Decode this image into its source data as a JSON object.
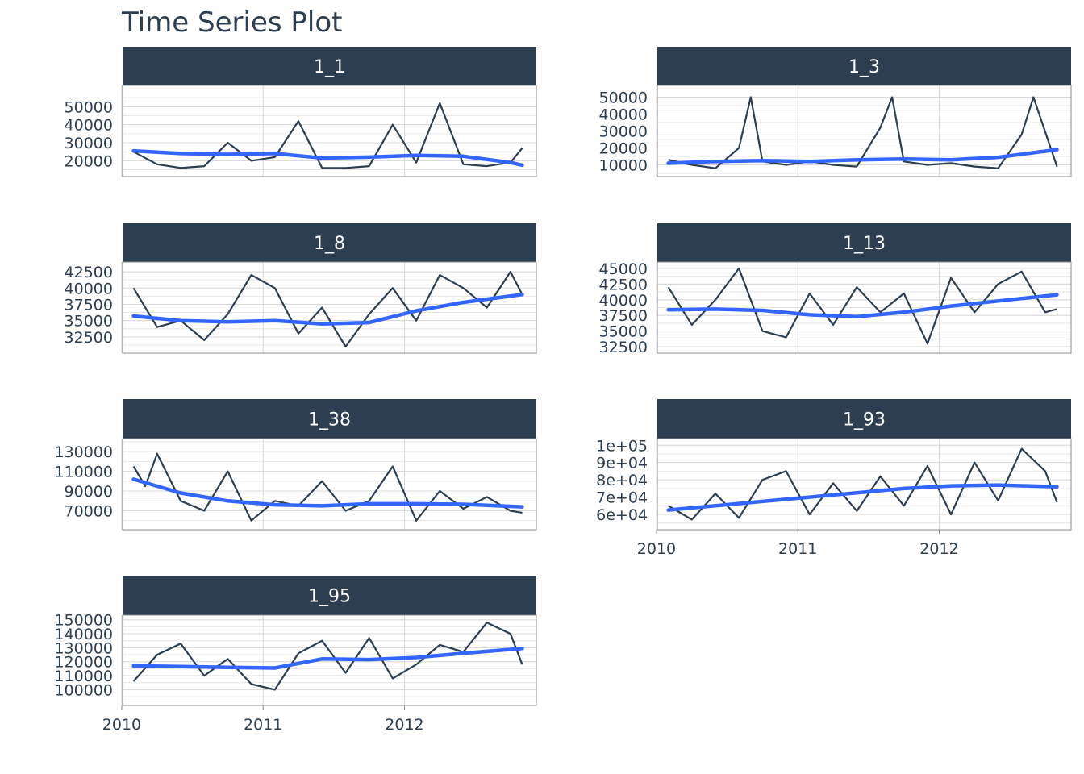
{
  "title": "Time Series Plot",
  "colors": {
    "strip": "#2c3e50",
    "series_line": "#2c3e50",
    "smooth_line": "#3366ff",
    "grid": "#d9d9d9",
    "panel_border": "#8c8c8c",
    "text": "#2c3e50"
  },
  "chart_data": {
    "type": "line",
    "facets": [
      "1_1",
      "1_3",
      "1_8",
      "1_13",
      "1_38",
      "1_93",
      "1_95"
    ],
    "x_axis": {
      "ticks": [
        "2010",
        "2011",
        "2012"
      ],
      "xlim": [
        "2010-01-01",
        "2012-12-31"
      ]
    },
    "panels": [
      {
        "facet": "1_1",
        "y_ticks": [
          "20000",
          "30000",
          "40000",
          "50000"
        ],
        "y_tick_values": [
          20000,
          30000,
          40000,
          50000
        ],
        "ylim": [
          13000,
          60000
        ],
        "series": [
          {
            "x": [
              "2010-02",
              "2010-04",
              "2010-06",
              "2010-08",
              "2010-10",
              "2010-12",
              "2011-02",
              "2011-04",
              "2011-06",
              "2011-08",
              "2011-10",
              "2011-12",
              "2012-02",
              "2012-04",
              "2012-06",
              "2012-08",
              "2012-10",
              "2012-11"
            ],
            "y": [
              25000,
              18000,
              16000,
              17000,
              30000,
              20000,
              22000,
              42000,
              16000,
              16000,
              17000,
              40000,
              19000,
              52000,
              18000,
              17000,
              19000,
              27000
            ]
          }
        ],
        "smooth": {
          "x": [
            "2010-02",
            "2010-06",
            "2010-10",
            "2011-02",
            "2011-06",
            "2011-10",
            "2012-02",
            "2012-06",
            "2012-10",
            "2012-11"
          ],
          "y": [
            25500,
            24000,
            23500,
            24000,
            21500,
            22000,
            23000,
            22500,
            19000,
            17500
          ]
        }
      },
      {
        "facet": "1_3",
        "y_ticks": [
          "10000",
          "20000",
          "30000",
          "40000",
          "50000"
        ],
        "y_tick_values": [
          10000,
          20000,
          30000,
          40000,
          50000
        ],
        "ylim": [
          5000,
          55000
        ],
        "series": [
          {
            "x": [
              "2010-02",
              "2010-04",
              "2010-06",
              "2010-08",
              "2010-09",
              "2010-10",
              "2010-12",
              "2011-02",
              "2011-04",
              "2011-06",
              "2011-08",
              "2011-09",
              "2011-10",
              "2011-12",
              "2012-02",
              "2012-04",
              "2012-06",
              "2012-08",
              "2012-09",
              "2012-11"
            ],
            "y": [
              13000,
              10000,
              8000,
              20000,
              50000,
              12000,
              10000,
              12000,
              10000,
              9000,
              32000,
              50000,
              12000,
              10000,
              11000,
              9000,
              8000,
              28000,
              50000,
              9000
            ]
          }
        ],
        "smooth": {
          "x": [
            "2010-02",
            "2010-06",
            "2010-10",
            "2011-02",
            "2011-06",
            "2011-10",
            "2012-02",
            "2012-06",
            "2012-11"
          ],
          "y": [
            11000,
            12000,
            12500,
            12000,
            13000,
            13500,
            13000,
            14500,
            19000
          ]
        }
      },
      {
        "facet": "1_8",
        "y_ticks": [
          "32500",
          "35000",
          "37500",
          "40000",
          "42500"
        ],
        "y_tick_values": [
          32500,
          35000,
          37500,
          40000,
          42500
        ],
        "ylim": [
          30500,
          43500
        ],
        "series": [
          {
            "x": [
              "2010-02",
              "2010-04",
              "2010-06",
              "2010-08",
              "2010-10",
              "2010-12",
              "2011-02",
              "2011-04",
              "2011-06",
              "2011-08",
              "2011-10",
              "2011-12",
              "2012-02",
              "2012-04",
              "2012-06",
              "2012-08",
              "2012-10",
              "2012-11"
            ],
            "y": [
              40000,
              34000,
              35000,
              32000,
              36000,
              42000,
              40000,
              33000,
              37000,
              31000,
              36000,
              40000,
              35000,
              42000,
              40000,
              37000,
              42500,
              39000
            ]
          }
        ],
        "smooth": {
          "x": [
            "2010-02",
            "2010-06",
            "2010-10",
            "2011-02",
            "2011-06",
            "2011-10",
            "2012-02",
            "2012-06",
            "2012-11"
          ],
          "y": [
            35700,
            35000,
            34800,
            35000,
            34500,
            34700,
            36500,
            37800,
            39000
          ]
        }
      },
      {
        "facet": "1_13",
        "y_ticks": [
          "32500",
          "35000",
          "37500",
          "40000",
          "42500",
          "45000"
        ],
        "y_tick_values": [
          32500,
          35000,
          37500,
          40000,
          42500,
          45000
        ],
        "ylim": [
          32000,
          45500
        ],
        "series": [
          {
            "x": [
              "2010-02",
              "2010-04",
              "2010-06",
              "2010-08",
              "2010-10",
              "2010-12",
              "2011-02",
              "2011-04",
              "2011-06",
              "2011-08",
              "2011-10",
              "2011-12",
              "2012-02",
              "2012-04",
              "2012-06",
              "2012-08",
              "2012-10",
              "2012-11"
            ],
            "y": [
              42000,
              36000,
              40000,
              45000,
              35000,
              34000,
              41000,
              36000,
              42000,
              38000,
              41000,
              33000,
              43500,
              38000,
              42500,
              44500,
              38000,
              38500
            ]
          }
        ],
        "smooth": {
          "x": [
            "2010-02",
            "2010-06",
            "2010-10",
            "2011-02",
            "2011-06",
            "2011-10",
            "2012-02",
            "2012-06",
            "2012-11"
          ],
          "y": [
            38400,
            38500,
            38300,
            37600,
            37300,
            38000,
            39000,
            39800,
            40800
          ]
        }
      },
      {
        "facet": "1_38",
        "y_ticks": [
          "70000",
          "90000",
          "110000",
          "130000"
        ],
        "y_tick_values": [
          70000,
          90000,
          110000,
          130000
        ],
        "ylim": [
          54000,
          140000
        ],
        "series": [
          {
            "x": [
              "2010-02",
              "2010-03",
              "2010-04",
              "2010-06",
              "2010-08",
              "2010-10",
              "2010-12",
              "2011-02",
              "2011-04",
              "2011-06",
              "2011-08",
              "2011-10",
              "2011-12",
              "2012-02",
              "2012-04",
              "2012-06",
              "2012-08",
              "2012-10",
              "2012-11"
            ],
            "y": [
              115000,
              95000,
              128000,
              80000,
              70000,
              110000,
              60000,
              80000,
              75000,
              100000,
              70000,
              80000,
              115000,
              60000,
              90000,
              72000,
              84000,
              70000,
              68000
            ]
          }
        ],
        "smooth": {
          "x": [
            "2010-02",
            "2010-06",
            "2010-10",
            "2011-02",
            "2011-06",
            "2011-10",
            "2012-02",
            "2012-06",
            "2012-11"
          ],
          "y": [
            102000,
            88000,
            80000,
            76000,
            75000,
            77000,
            77000,
            76500,
            74000
          ]
        }
      },
      {
        "facet": "1_93",
        "y_ticks": [
          "6e+04",
          "7e+04",
          "8e+04",
          "9e+04",
          "1e+05"
        ],
        "y_tick_values": [
          60000,
          70000,
          80000,
          90000,
          100000
        ],
        "ylim": [
          53000,
          102000
        ],
        "series": [
          {
            "x": [
              "2010-02",
              "2010-04",
              "2010-06",
              "2010-08",
              "2010-10",
              "2010-12",
              "2011-02",
              "2011-04",
              "2011-06",
              "2011-08",
              "2011-10",
              "2011-12",
              "2012-02",
              "2012-04",
              "2012-06",
              "2012-08",
              "2012-10",
              "2012-11"
            ],
            "y": [
              65000,
              57000,
              72000,
              58000,
              80000,
              85000,
              60000,
              78000,
              62000,
              82000,
              65000,
              88000,
              60000,
              90000,
              68000,
              98000,
              85000,
              67000
            ]
          }
        ],
        "smooth": {
          "x": [
            "2010-02",
            "2010-06",
            "2010-10",
            "2011-02",
            "2011-06",
            "2011-10",
            "2012-02",
            "2012-06",
            "2012-11"
          ],
          "y": [
            62500,
            65000,
            67500,
            70000,
            72500,
            75000,
            76500,
            77000,
            76000
          ]
        }
      },
      {
        "facet": "1_95",
        "y_ticks": [
          "100000",
          "110000",
          "120000",
          "130000",
          "140000",
          "150000"
        ],
        "y_tick_values": [
          100000,
          110000,
          120000,
          130000,
          140000,
          150000
        ],
        "ylim": [
          91000,
          151000
        ],
        "series": [
          {
            "x": [
              "2010-02",
              "2010-04",
              "2010-06",
              "2010-08",
              "2010-10",
              "2010-12",
              "2011-02",
              "2011-04",
              "2011-06",
              "2011-08",
              "2011-10",
              "2011-12",
              "2012-02",
              "2012-04",
              "2012-06",
              "2012-08",
              "2012-10",
              "2012-11"
            ],
            "y": [
              106000,
              125000,
              133000,
              110000,
              122000,
              104000,
              100000,
              126000,
              135000,
              112000,
              137000,
              108000,
              118000,
              132000,
              127000,
              148000,
              140000,
              118000
            ]
          }
        ],
        "smooth": {
          "x": [
            "2010-02",
            "2010-06",
            "2010-10",
            "2011-02",
            "2011-06",
            "2011-10",
            "2012-02",
            "2012-06",
            "2012-11"
          ],
          "y": [
            117000,
            116500,
            116000,
            115500,
            122000,
            121500,
            123000,
            126000,
            129500
          ]
        }
      }
    ]
  }
}
